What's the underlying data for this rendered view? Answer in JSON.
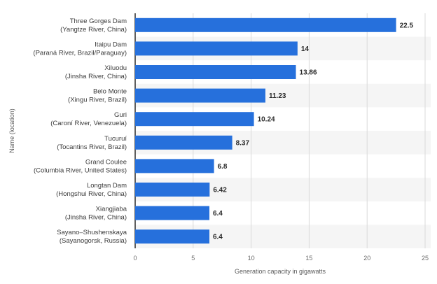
{
  "chart_data": {
    "type": "bar",
    "orientation": "horizontal",
    "title": "",
    "xlabel": "Generation capacity in gigawatts",
    "ylabel": "Name (location)",
    "xlim": [
      0,
      25
    ],
    "xticks": [
      0,
      5,
      10,
      15,
      20,
      25
    ],
    "grid": true,
    "bar_color": "#2670dc",
    "categories": [
      {
        "name": "Three Gorges Dam",
        "location": "(Yangtze River, China)",
        "value": 22.5,
        "value_label": "22.5"
      },
      {
        "name": "Itaipu Dam",
        "location": "(Paraná River, Brazil/Paraguay)",
        "value": 14,
        "value_label": "14"
      },
      {
        "name": "Xiluodu",
        "location": "(Jinsha River, China)",
        "value": 13.86,
        "value_label": "13.86"
      },
      {
        "name": "Belo Monte",
        "location": "(Xingu River, Brazil)",
        "value": 11.23,
        "value_label": "11.23"
      },
      {
        "name": "Guri",
        "location": "(Caroní River, Venezuela)",
        "value": 10.24,
        "value_label": "10.24"
      },
      {
        "name": "Tucuruí",
        "location": "(Tocantins River, Brazil)",
        "value": 8.37,
        "value_label": "8.37"
      },
      {
        "name": "Grand Coulee",
        "location": "(Columbia River, United States)",
        "value": 6.8,
        "value_label": "6.8"
      },
      {
        "name": "Longtan Dam",
        "location": "(Hongshui River, China)",
        "value": 6.42,
        "value_label": "6.42"
      },
      {
        "name": "Xiangjiaba",
        "location": "(Jinsha River, China)",
        "value": 6.4,
        "value_label": "6.4"
      },
      {
        "name": "Sayano–Shushenskaya",
        "location": "(Sayanogorsk, Russia)",
        "value": 6.4,
        "value_label": "6.4"
      }
    ]
  }
}
